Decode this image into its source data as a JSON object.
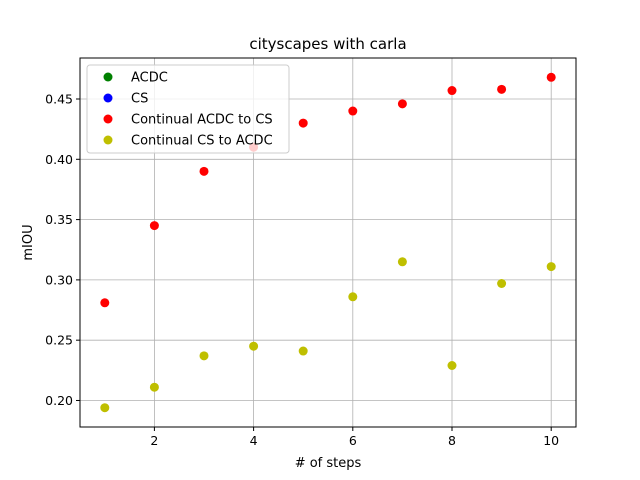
{
  "chart_data": {
    "type": "scatter",
    "title": "cityscapes with carla",
    "xlabel": "# of steps",
    "ylabel": "mIOU",
    "xlim": [
      0.5,
      10.5
    ],
    "ylim": [
      0.178,
      0.484
    ],
    "xticks": [
      2,
      4,
      6,
      8,
      10
    ],
    "yticks": [
      0.2,
      0.25,
      0.3,
      0.35,
      0.4,
      0.45
    ],
    "xtick_labels": [
      "2",
      "4",
      "6",
      "8",
      "10"
    ],
    "ytick_labels": [
      "0.20",
      "0.25",
      "0.30",
      "0.35",
      "0.40",
      "0.45"
    ],
    "grid": true,
    "legend_position": "top-left",
    "series": [
      {
        "name": "ACDC",
        "color": "#008000",
        "x": [],
        "y": []
      },
      {
        "name": "CS",
        "color": "#0000ff",
        "x": [],
        "y": []
      },
      {
        "name": "Continual ACDC to CS",
        "color": "#ff0000",
        "x": [
          1,
          2,
          3,
          4,
          5,
          6,
          7,
          8,
          9,
          10
        ],
        "y": [
          0.281,
          0.345,
          0.39,
          0.41,
          0.43,
          0.44,
          0.446,
          0.457,
          0.458,
          0.468
        ]
      },
      {
        "name": "Continual CS to ACDC",
        "color": "#bfbf00",
        "x": [
          1,
          2,
          3,
          4,
          5,
          6,
          7,
          8,
          9,
          10
        ],
        "y": [
          0.194,
          0.211,
          0.237,
          0.245,
          0.241,
          0.286,
          0.315,
          0.229,
          0.297,
          0.311
        ]
      }
    ]
  }
}
